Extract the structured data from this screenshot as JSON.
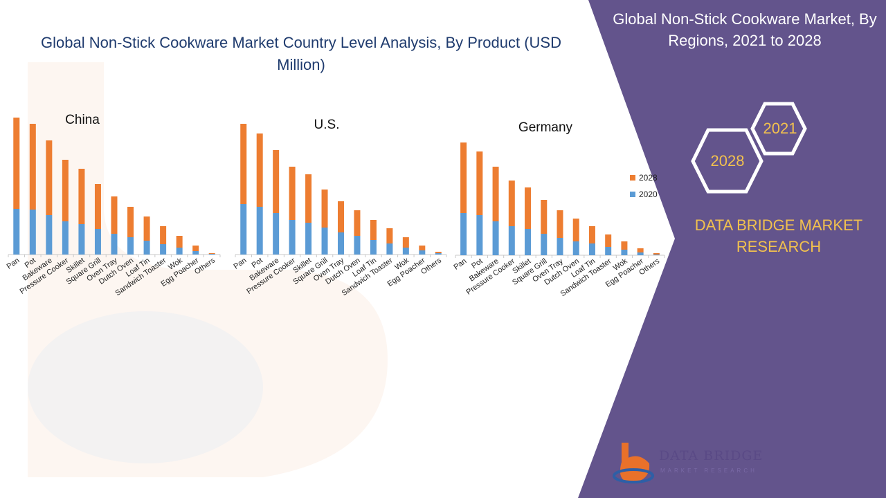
{
  "title": "Global Non-Stick Cookware Market Country Level Analysis, By Product (USD Million)",
  "side_panel": {
    "title": "Global Non-Stick Cookware Market, By Regions, 2021 to 2028",
    "hex_top": "2021",
    "hex_bottom": "2028",
    "brand": "DATA BRIDGE MARKET RESEARCH",
    "logo_text": "DATA BRIDGE",
    "logo_sub": "MARKET RESEARCH",
    "panel_color": "#63548c",
    "accent_color": "#f2c14e"
  },
  "chart_data": [
    {
      "type": "bar",
      "stacked": true,
      "title": "China",
      "categories": [
        "Pan",
        "Pot",
        "Bakeware",
        "Pressure Cooker",
        "Skillet",
        "Square Grill",
        "Oven Tray",
        "Dutch Oven",
        "Loaf Tin",
        "Sandwich Toaster",
        "Wok",
        "Egg Poacher",
        "Others"
      ],
      "series": [
        {
          "name": "2020",
          "color": "#5b9bd5",
          "values": [
            66,
            65,
            57,
            48,
            44,
            37,
            30,
            25,
            20,
            15,
            10,
            5,
            1
          ]
        },
        {
          "name": "2028",
          "color": "#ed7d31",
          "values": [
            132,
            124,
            108,
            89,
            80,
            65,
            54,
            44,
            35,
            26,
            17,
            8,
            1
          ]
        }
      ],
      "ylim": [
        0,
        200
      ]
    },
    {
      "type": "bar",
      "stacked": true,
      "title": "U.S.",
      "categories": [
        "Pan",
        "Pot",
        "Bakeware",
        "Pressure Cooker",
        "Skillet",
        "Square Grill",
        "Oven Tray",
        "Dutch Oven",
        "Loaf Tin",
        "Sandwich Toaster",
        "Wok",
        "Egg Poacher",
        "Others"
      ],
      "series": [
        {
          "name": "2020",
          "color": "#5b9bd5",
          "values": [
            73,
            69,
            60,
            50,
            46,
            39,
            32,
            27,
            21,
            16,
            10,
            6,
            2
          ]
        },
        {
          "name": "2028",
          "color": "#ed7d31",
          "values": [
            116,
            106,
            91,
            77,
            70,
            55,
            45,
            37,
            29,
            22,
            15,
            7,
            2
          ]
        }
      ],
      "ylim": [
        0,
        200
      ]
    },
    {
      "type": "bar",
      "stacked": true,
      "title": "Germany",
      "categories": [
        "Pan",
        "Pot",
        "Bakeware",
        "Pressure Cooker",
        "Skillet",
        "Square Grill",
        "Oven Tray",
        "Dutch Oven",
        "Loaf Tin",
        "Sandwich Toaster",
        "Wok",
        "Egg Poacher",
        "Others"
      ],
      "series": [
        {
          "name": "2020",
          "color": "#5b9bd5",
          "values": [
            61,
            58,
            49,
            42,
            38,
            31,
            25,
            20,
            17,
            12,
            8,
            4,
            1
          ]
        },
        {
          "name": "2028",
          "color": "#ed7d31",
          "values": [
            102,
            92,
            79,
            66,
            60,
            49,
            40,
            33,
            25,
            18,
            12,
            6,
            2
          ]
        }
      ],
      "ylim": [
        0,
        200
      ]
    }
  ],
  "legend": {
    "items": [
      "2028",
      "2020"
    ],
    "colors": [
      "#ed7d31",
      "#5b9bd5"
    ]
  }
}
